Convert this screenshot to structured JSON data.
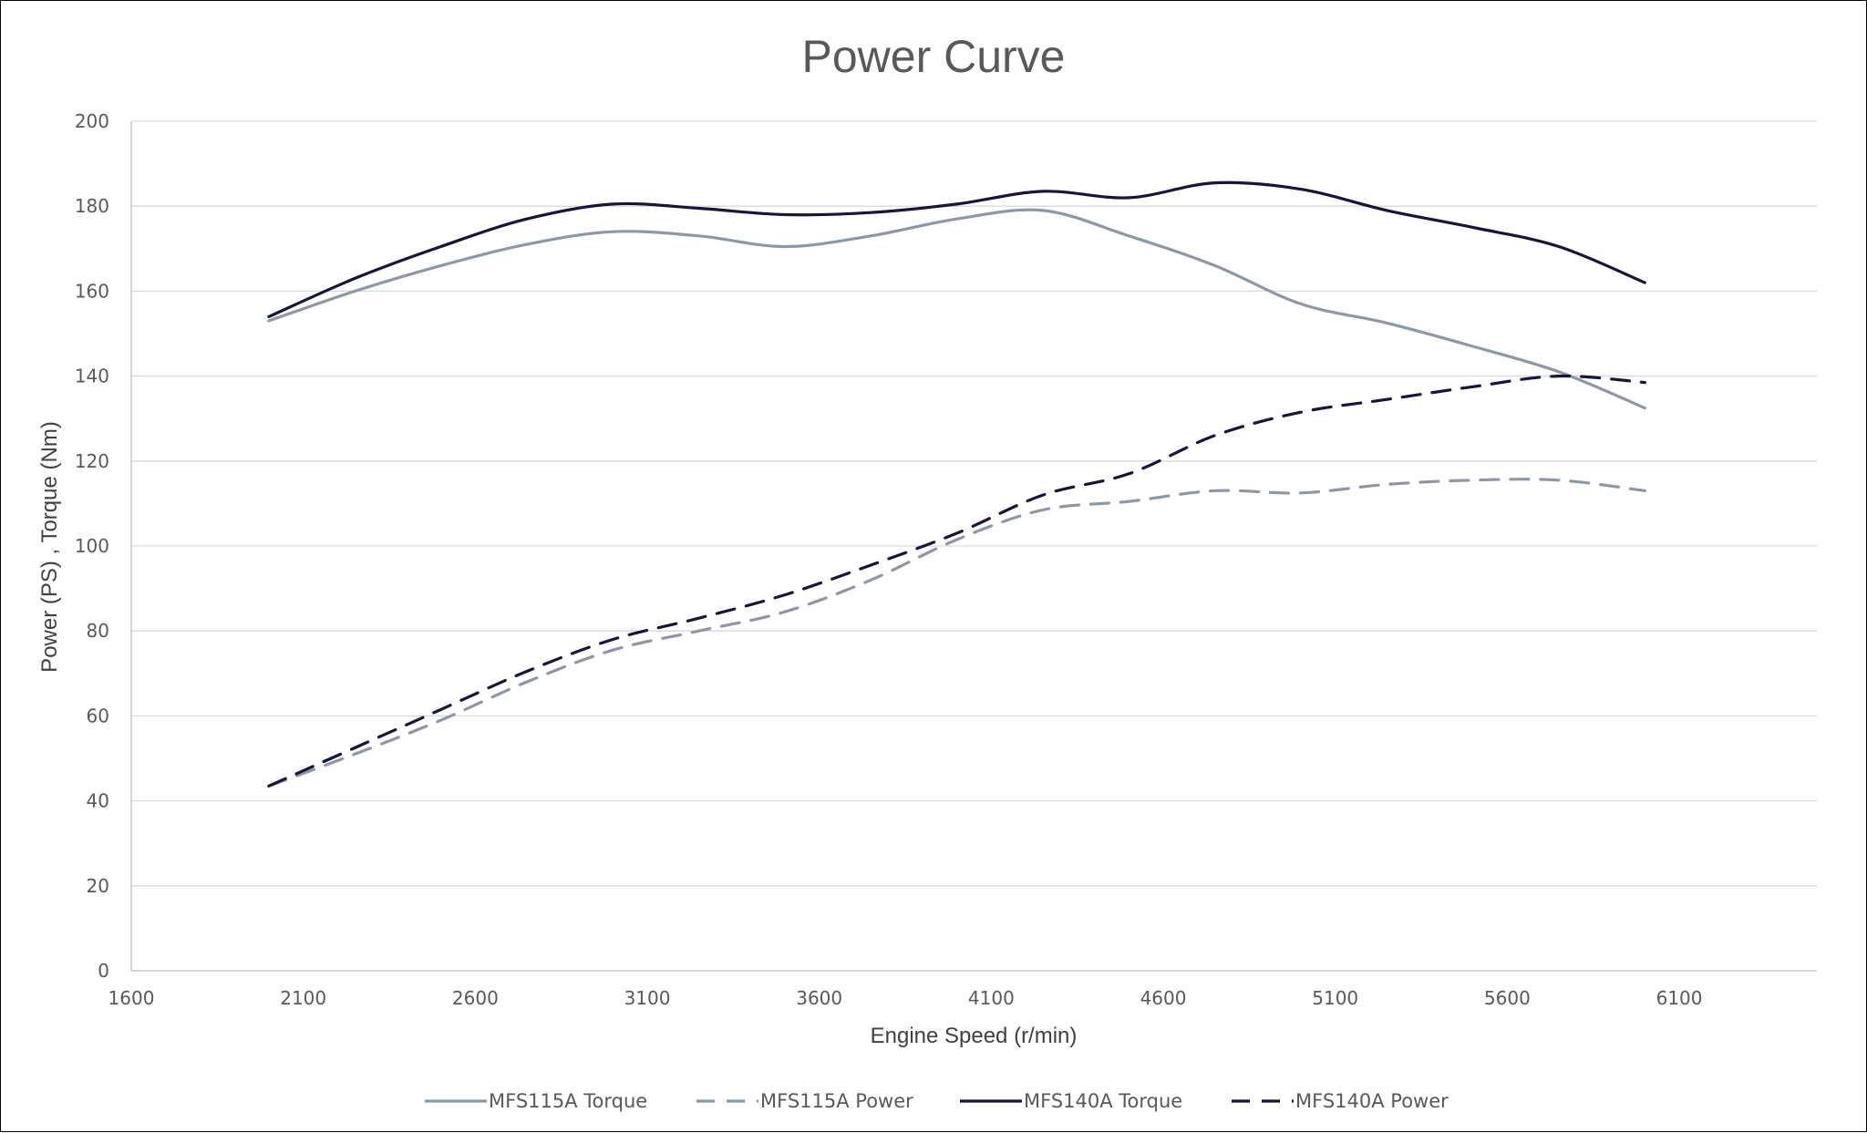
{
  "chart_data": {
    "type": "line",
    "title": "Power Curve",
    "xlabel": "Engine Speed (r/min)",
    "ylabel": "Power (PS) , Torque (Nm)",
    "xlim": [
      1600,
      6500
    ],
    "ylim": [
      0,
      200
    ],
    "x_ticks": [
      1600,
      2100,
      2600,
      3100,
      3600,
      4100,
      4600,
      5100,
      5600,
      6100
    ],
    "y_ticks": [
      0,
      20,
      40,
      60,
      80,
      100,
      120,
      140,
      160,
      180,
      200
    ],
    "grid": true,
    "legend_position": "bottom",
    "x": [
      2000,
      2250,
      2500,
      2750,
      3000,
      3250,
      3500,
      3750,
      4000,
      4250,
      4500,
      4750,
      5000,
      5250,
      5500,
      5750,
      6000
    ],
    "series": [
      {
        "name": "MFS115A Torque",
        "color": "#8e97a8",
        "dash": "solid",
        "values": [
          153,
          160,
          166,
          171,
          174,
          173,
          170.5,
          173,
          177,
          179,
          173,
          166,
          157,
          152.5,
          147,
          141,
          132.5
        ]
      },
      {
        "name": "MFS115A Power",
        "color": "#8e97a8",
        "dash": "dashed",
        "values": [
          43.5,
          51,
          59,
          68,
          75.5,
          80,
          84.5,
          92,
          101.5,
          108.5,
          110.5,
          113,
          112.5,
          114.5,
          115.5,
          115.5,
          113
        ]
      },
      {
        "name": "MFS140A Torque",
        "color": "#14163a",
        "dash": "solid",
        "values": [
          154,
          163,
          170.5,
          177,
          180.5,
          179.5,
          178,
          178.5,
          180.5,
          183.5,
          182,
          185.5,
          184,
          179,
          175,
          170.5,
          162
        ]
      },
      {
        "name": "MFS140A Power",
        "color": "#14163a",
        "dash": "dashed",
        "values": [
          43.5,
          52.5,
          61.5,
          70.5,
          78,
          83,
          88.5,
          95.5,
          103,
          112,
          117,
          126,
          131.5,
          134.5,
          137.5,
          140,
          138.5
        ]
      }
    ]
  }
}
